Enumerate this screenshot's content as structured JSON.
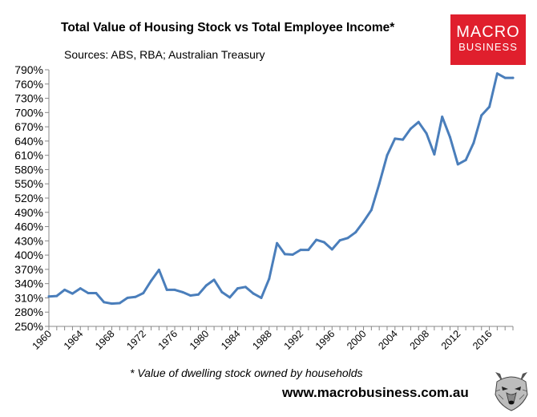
{
  "header": {
    "title": "Total Value of Housing Stock vs Total Employee Income*",
    "subtitle": "Sources: ABS, RBA; Australian Treasury"
  },
  "logo": {
    "line1": "MACRO",
    "line2": "BUSINESS",
    "color": "#e01f2d"
  },
  "footer": {
    "footnote": "* Value of dwelling stock owned by households",
    "website": "www.macrobusiness.com.au"
  },
  "chart_data": {
    "type": "line",
    "title": "Total Value of Housing Stock vs Total Employee Income*",
    "xlabel": "",
    "ylabel": "",
    "ylim": [
      250,
      790
    ],
    "xlim": [
      1960,
      2019
    ],
    "y_ticks": [
      250,
      280,
      310,
      340,
      370,
      400,
      430,
      460,
      490,
      520,
      550,
      580,
      610,
      640,
      670,
      700,
      730,
      760,
      790
    ],
    "y_tick_labels": [
      "250%",
      "280%",
      "310%",
      "340%",
      "370%",
      "400%",
      "430%",
      "460%",
      "490%",
      "520%",
      "550%",
      "580%",
      "610%",
      "640%",
      "670%",
      "700%",
      "730%",
      "760%",
      "790%"
    ],
    "x_ticks": [
      1960,
      1964,
      1968,
      1972,
      1976,
      1980,
      1984,
      1988,
      1992,
      1996,
      2000,
      2004,
      2008,
      2012,
      2016
    ],
    "x_tick_labels": [
      "1960",
      "1964",
      "1968",
      "1972",
      "1976",
      "1980",
      "1984",
      "1988",
      "1992",
      "1996",
      "2000",
      "2004",
      "2008",
      "2012",
      "2016"
    ],
    "grid": false,
    "series": [
      {
        "name": "Housing stock / employee income",
        "color": "#4a7ebb",
        "x": [
          1960,
          1961,
          1962,
          1963,
          1964,
          1965,
          1966,
          1967,
          1968,
          1969,
          1970,
          1971,
          1972,
          1973,
          1974,
          1975,
          1976,
          1977,
          1978,
          1979,
          1980,
          1981,
          1982,
          1983,
          1984,
          1985,
          1986,
          1987,
          1988,
          1989,
          1990,
          1991,
          1992,
          1993,
          1994,
          1995,
          1996,
          1997,
          1998,
          1999,
          2000,
          2001,
          2002,
          2003,
          2004,
          2005,
          2006,
          2007,
          2008,
          2009,
          2010,
          2011,
          2012,
          2013,
          2014,
          2015,
          2016,
          2017,
          2018,
          2019
        ],
        "y": [
          313,
          314,
          327,
          319,
          330,
          320,
          320,
          301,
          298,
          299,
          310,
          312,
          320,
          346,
          369,
          327,
          327,
          322,
          315,
          317,
          336,
          348,
          322,
          311,
          330,
          333,
          319,
          310,
          350,
          425,
          402,
          401,
          411,
          411,
          432,
          427,
          412,
          431,
          436,
          448,
          470,
          495,
          550,
          610,
          645,
          643,
          666,
          680,
          656,
          612,
          691,
          648,
          591,
          600,
          636,
          694,
          712,
          782,
          773,
          773
        ]
      }
    ]
  }
}
